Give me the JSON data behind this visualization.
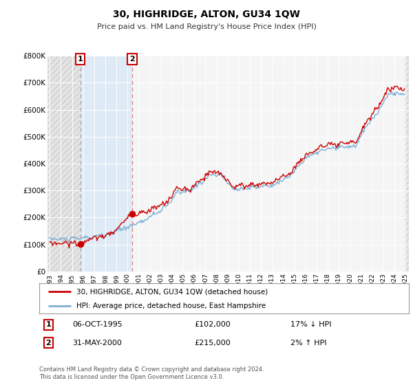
{
  "title": "30, HIGHRIDGE, ALTON, GU34 1QW",
  "subtitle": "Price paid vs. HM Land Registry's House Price Index (HPI)",
  "ylim": [
    0,
    800000
  ],
  "yticks": [
    0,
    100000,
    200000,
    300000,
    400000,
    500000,
    600000,
    700000,
    800000
  ],
  "ytick_labels": [
    "£0",
    "£100K",
    "£200K",
    "£300K",
    "£400K",
    "£500K",
    "£600K",
    "£700K",
    "£800K"
  ],
  "hpi_color": "#7bafd4",
  "price_color": "#cc0000",
  "dashed_color": "#dd8888",
  "vline1_color": "#aaaaaa",
  "background_color": "#ffffff",
  "plot_bg_color": "#f5f5f5",
  "legend_label_price": "30, HIGHRIDGE, ALTON, GU34 1QW (detached house)",
  "legend_label_hpi": "HPI: Average price, detached house, East Hampshire",
  "sale1_date": "06-OCT-1995",
  "sale1_price": "£102,000",
  "sale1_hpi": "17% ↓ HPI",
  "sale2_date": "31-MAY-2000",
  "sale2_price": "£215,000",
  "sale2_hpi": "2% ↑ HPI",
  "footnote": "Contains HM Land Registry data © Crown copyright and database right 2024.\nThis data is licensed under the Open Government Licence v3.0.",
  "sale1_year": 1995.75,
  "sale1_value": 102000,
  "sale2_year": 2000.42,
  "sale2_value": 215000,
  "xlim": [
    1992.8,
    2025.3
  ],
  "xtick_years": [
    1993,
    1994,
    1995,
    1996,
    1997,
    1998,
    1999,
    2000,
    2001,
    2002,
    2003,
    2004,
    2005,
    2006,
    2007,
    2008,
    2009,
    2010,
    2011,
    2012,
    2013,
    2014,
    2015,
    2016,
    2017,
    2018,
    2019,
    2020,
    2021,
    2022,
    2023,
    2024,
    2025
  ]
}
